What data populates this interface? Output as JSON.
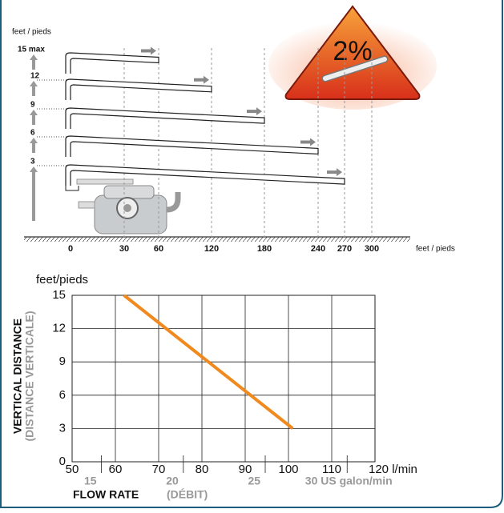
{
  "diagram": {
    "y_unit": "feet / pieds",
    "heights": [
      "15 max",
      "12",
      "9",
      "6",
      "3"
    ],
    "distances": [
      0,
      30,
      60,
      120,
      180,
      240,
      270,
      300
    ],
    "x_unit": "feet / pieds",
    "slope": "2%"
  },
  "chart_data": {
    "type": "line",
    "y_unit": "feet/pieds",
    "ylabel": "VERTICAL DISTANCE",
    "ylabel_alt": "(DISTANCE VERTICALE)",
    "xlabel": "FLOW RATE",
    "xlabel_alt": "(DÉBIT)",
    "x": [
      62,
      101
    ],
    "values": [
      15,
      3
    ],
    "color": "#f0891e",
    "xlim": [
      50,
      120
    ],
    "xticks": [
      50,
      60,
      70,
      80,
      90,
      100,
      110,
      {
        "value": 120,
        "label": "120 l/min"
      }
    ],
    "ylim": [
      0,
      15
    ],
    "yticks": [
      0,
      3,
      6,
      9,
      12,
      15
    ],
    "x2lim": [
      13.21,
      31.7
    ],
    "x2ticks": [
      15,
      20,
      25,
      {
        "value": 30,
        "label": "30 US galon/min"
      }
    ],
    "grid": true
  }
}
